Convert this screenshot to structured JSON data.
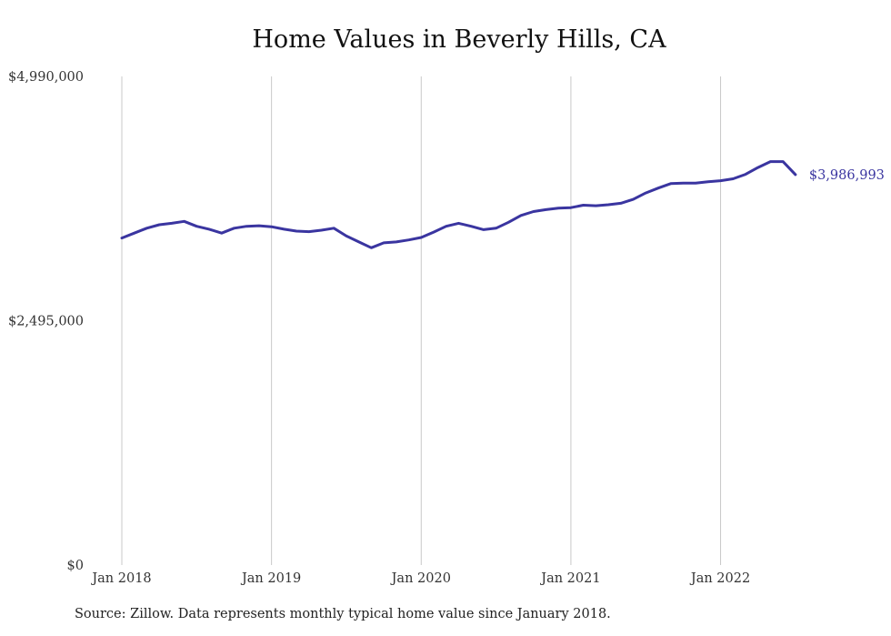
{
  "chart_data": {
    "type": "line",
    "title": "Home Values in Beverly Hills, CA",
    "source": "Source: Zillow. Data represents monthly typical home value since January 2018.",
    "xlabel": "",
    "ylabel": "",
    "ylim": [
      0,
      4990000
    ],
    "y_ticks": [
      {
        "value": 0,
        "label": "$0"
      },
      {
        "value": 2495000,
        "label": "$2,495,000"
      },
      {
        "value": 4990000,
        "label": "$4,990,000"
      }
    ],
    "x_ticks": [
      {
        "index": 0,
        "label": "Jan 2018"
      },
      {
        "index": 12,
        "label": "Jan 2019"
      },
      {
        "index": 24,
        "label": "Jan 2020"
      },
      {
        "index": 36,
        "label": "Jan 2021"
      },
      {
        "index": 48,
        "label": "Jan 2022"
      }
    ],
    "grid": "vertical",
    "line_color": "#3a35a0",
    "end_label": "$3,986,993",
    "series": [
      {
        "x": [
          "2018-01",
          "2018-02",
          "2018-03",
          "2018-04",
          "2018-05",
          "2018-06",
          "2018-07",
          "2018-08",
          "2018-09",
          "2018-10",
          "2018-11",
          "2018-12",
          "2019-01",
          "2019-02",
          "2019-03",
          "2019-04",
          "2019-05",
          "2019-06",
          "2019-07",
          "2019-08",
          "2019-09",
          "2019-10",
          "2019-11",
          "2019-12",
          "2020-01",
          "2020-02",
          "2020-03",
          "2020-04",
          "2020-05",
          "2020-06",
          "2020-07",
          "2020-08",
          "2020-09",
          "2020-10",
          "2020-11",
          "2020-12",
          "2021-01",
          "2021-02",
          "2021-03",
          "2021-04",
          "2021-05",
          "2021-06",
          "2021-07",
          "2021-08",
          "2021-09",
          "2021-10",
          "2021-11",
          "2021-12",
          "2022-01",
          "2022-02",
          "2022-03",
          "2022-04",
          "2022-05",
          "2022-06",
          "2022-07"
        ],
        "values": [
          3340000,
          3390000,
          3440000,
          3475000,
          3490000,
          3510000,
          3460000,
          3430000,
          3390000,
          3440000,
          3460000,
          3465000,
          3455000,
          3430000,
          3410000,
          3405000,
          3420000,
          3440000,
          3360000,
          3300000,
          3240000,
          3290000,
          3300000,
          3320000,
          3345000,
          3400000,
          3460000,
          3490000,
          3460000,
          3425000,
          3440000,
          3500000,
          3570000,
          3610000,
          3630000,
          3645000,
          3650000,
          3675000,
          3670000,
          3680000,
          3695000,
          3735000,
          3800000,
          3850000,
          3895000,
          3900000,
          3900000,
          3915000,
          3925000,
          3945000,
          3990000,
          4060000,
          4120000,
          4120000,
          3986993
        ]
      }
    ]
  }
}
